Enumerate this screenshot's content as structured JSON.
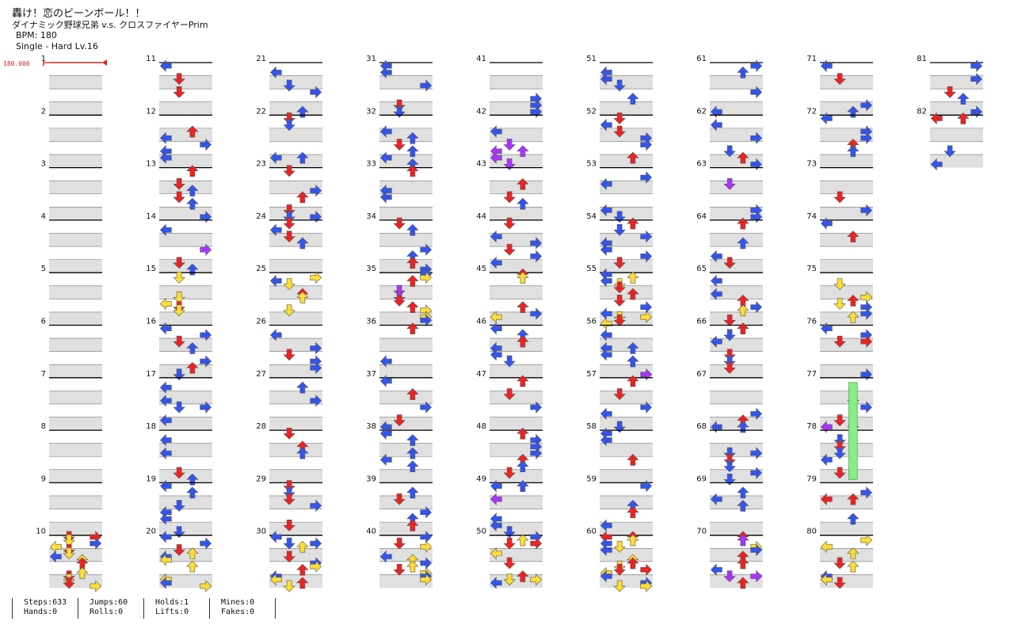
{
  "song": {
    "title": "轟け！恋のビーンボール！！",
    "artist": "ダイナミック野球兄弟 v.s. クロスファイヤーPrim",
    "bpm_label": "BPM: 180",
    "difficulty_label": "Single - Hard  Lv.16"
  },
  "bpm_marker": {
    "label": "180.000",
    "color": "#dd2222"
  },
  "colors": {
    "left": "#3355ee",
    "down": "#ee2222",
    "up": "#ee2222",
    "right": "#3355ee",
    "eighth": "#3355ee",
    "sixteenth": "#ffdd33",
    "twelfth": "#aa33ff",
    "hold": "#88ee88",
    "band": "#e0e0e0",
    "measure_line": "#000000",
    "beat_line": "#777777"
  },
  "chart_data": {
    "type": "table",
    "measure_count": 82,
    "measures_per_column": 10,
    "columns": 9,
    "measure_numbers": [
      1,
      2,
      3,
      4,
      5,
      6,
      7,
      8,
      9,
      10,
      11,
      12,
      13,
      14,
      15,
      16,
      17,
      18,
      19,
      20,
      21,
      22,
      23,
      24,
      25,
      26,
      27,
      28,
      29,
      30,
      31,
      32,
      33,
      34,
      35,
      36,
      37,
      38,
      39,
      40,
      41,
      42,
      43,
      44,
      45,
      46,
      47,
      48,
      49,
      50,
      51,
      52,
      53,
      54,
      55,
      56,
      57,
      58,
      59,
      60,
      61,
      62,
      63,
      64,
      65,
      66,
      67,
      68,
      69,
      70,
      71,
      72,
      73,
      74,
      75,
      76,
      77,
      78,
      79,
      80,
      81,
      82
    ],
    "lanes": [
      "left",
      "down",
      "up",
      "right"
    ]
  },
  "stats": {
    "steps": "Steps:633",
    "hands": "Hands:0",
    "jumps": "Jumps:60",
    "rolls": "Rolls:0",
    "holds": "Holds:1",
    "lifts": "Lifts:0",
    "mines": "Mines:0",
    "fakes": "Fakes:0"
  }
}
